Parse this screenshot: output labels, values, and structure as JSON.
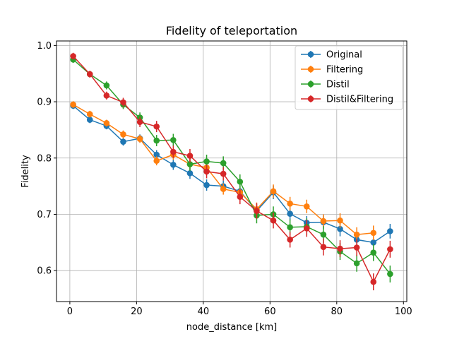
{
  "chart_data": {
    "type": "line",
    "title": "Fidelity of teleportation",
    "xlabel": "node_distance [km]",
    "ylabel": "Fidelity",
    "xlim": [
      -4,
      101
    ],
    "ylim": [
      0.545,
      1.008
    ],
    "xticks": [
      0,
      20,
      40,
      60,
      80,
      100
    ],
    "yticks": [
      0.6,
      0.7,
      0.8,
      0.9,
      1.0
    ],
    "xtick_labels": [
      "0",
      "20",
      "40",
      "60",
      "80",
      "100"
    ],
    "ytick_labels": [
      "0.6",
      "0.7",
      "0.8",
      "0.9",
      "1.0"
    ],
    "grid": true,
    "legend_position": "top-right",
    "x": [
      1,
      6,
      11,
      16,
      21,
      26,
      31,
      36,
      41,
      46,
      51,
      56,
      61,
      66,
      71,
      76,
      81,
      86,
      91,
      96
    ],
    "series": [
      {
        "name": "Original",
        "color": "#1f77b4",
        "values": [
          0.893,
          0.868,
          0.857,
          0.829,
          0.835,
          0.806,
          0.788,
          0.773,
          0.752,
          0.75,
          0.741,
          0.706,
          0.739,
          0.701,
          0.685,
          0.686,
          0.674,
          0.655,
          0.65,
          0.67
        ],
        "errors": [
          0.006,
          0.006,
          0.006,
          0.007,
          0.007,
          0.008,
          0.009,
          0.01,
          0.01,
          0.01,
          0.011,
          0.012,
          0.012,
          0.012,
          0.012,
          0.012,
          0.013,
          0.013,
          0.013,
          0.013
        ]
      },
      {
        "name": "Filtering",
        "color": "#ff7f0e",
        "values": [
          0.895,
          0.878,
          0.862,
          0.842,
          0.834,
          0.795,
          0.806,
          0.789,
          0.783,
          0.745,
          0.739,
          0.709,
          0.741,
          0.719,
          0.714,
          0.688,
          0.689,
          0.664,
          0.667,
          null
        ],
        "errors": [
          0.006,
          0.006,
          0.006,
          0.007,
          0.007,
          0.008,
          0.009,
          0.01,
          0.01,
          0.01,
          0.011,
          0.012,
          0.012,
          0.012,
          0.012,
          0.012,
          0.013,
          0.013,
          0.013,
          null
        ]
      },
      {
        "name": "Distil",
        "color": "#2ca02c",
        "values": [
          0.975,
          0.949,
          0.929,
          0.895,
          0.872,
          0.831,
          0.832,
          0.789,
          0.794,
          0.791,
          0.758,
          0.698,
          0.7,
          0.677,
          0.678,
          0.664,
          0.634,
          0.613,
          0.632,
          0.594
        ],
        "errors": [
          0.006,
          0.006,
          0.007,
          0.008,
          0.009,
          0.01,
          0.011,
          0.012,
          0.012,
          0.012,
          0.013,
          0.014,
          0.014,
          0.014,
          0.015,
          0.015,
          0.015,
          0.015,
          0.015,
          0.015
        ]
      },
      {
        "name": "Distil&Filtering",
        "color": "#d62728",
        "values": [
          0.981,
          0.949,
          0.911,
          0.899,
          0.864,
          0.856,
          0.811,
          0.804,
          0.776,
          0.772,
          0.731,
          0.706,
          0.689,
          0.655,
          0.675,
          0.642,
          0.639,
          0.641,
          0.58,
          0.638
        ],
        "errors": [
          0.006,
          0.006,
          0.007,
          0.008,
          0.009,
          0.01,
          0.011,
          0.012,
          0.012,
          0.012,
          0.013,
          0.014,
          0.014,
          0.014,
          0.015,
          0.015,
          0.015,
          0.015,
          0.015,
          0.015
        ]
      }
    ]
  }
}
